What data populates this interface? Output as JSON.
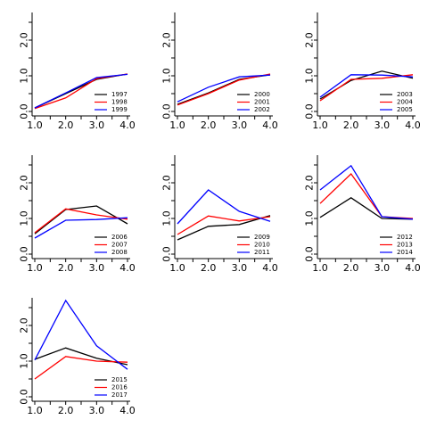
{
  "chart_data": [
    {
      "type": "line",
      "x": [
        1,
        2,
        3,
        4
      ],
      "xlim": [
        1,
        4
      ],
      "ylim": [
        0,
        2.5
      ],
      "xticks": [
        "1.0",
        "2.0",
        "3.0",
        "4.0"
      ],
      "yticks": [
        "0.0",
        "1.0",
        "2.0"
      ],
      "series": [
        {
          "name": "1997",
          "color": "#000000",
          "values": [
            0.1,
            0.5,
            0.9,
            1.05
          ]
        },
        {
          "name": "1998",
          "color": "#ff0000",
          "values": [
            0.08,
            0.38,
            0.92,
            1.05
          ]
        },
        {
          "name": "1999",
          "color": "#0000ff",
          "values": [
            0.1,
            0.52,
            0.95,
            1.04
          ]
        }
      ]
    },
    {
      "type": "line",
      "x": [
        1,
        2,
        3,
        4
      ],
      "xlim": [
        1,
        4
      ],
      "ylim": [
        0,
        2.5
      ],
      "xticks": [
        "1.0",
        "2.0",
        "3.0",
        "4.0"
      ],
      "yticks": [
        "0.0",
        "1.0",
        "2.0"
      ],
      "series": [
        {
          "name": "2000",
          "color": "#000000",
          "values": [
            0.2,
            0.52,
            0.9,
            1.03
          ]
        },
        {
          "name": "2001",
          "color": "#ff0000",
          "values": [
            0.18,
            0.5,
            0.88,
            1.05
          ]
        },
        {
          "name": "2002",
          "color": "#0000ff",
          "values": [
            0.27,
            0.68,
            0.97,
            1.02
          ]
        }
      ]
    },
    {
      "type": "line",
      "x": [
        1,
        2,
        3,
        4
      ],
      "xlim": [
        1,
        4
      ],
      "ylim": [
        0,
        2.5
      ],
      "xticks": [
        "1.0",
        "2.0",
        "3.0",
        "4.0"
      ],
      "yticks": [
        "0.0",
        "1.0",
        "2.0"
      ],
      "series": [
        {
          "name": "2003",
          "color": "#000000",
          "values": [
            0.35,
            0.87,
            1.13,
            0.93
          ]
        },
        {
          "name": "2004",
          "color": "#ff0000",
          "values": [
            0.3,
            0.9,
            0.93,
            1.03
          ]
        },
        {
          "name": "2005",
          "color": "#0000ff",
          "values": [
            0.4,
            1.03,
            1.02,
            0.97
          ]
        }
      ]
    },
    {
      "type": "line",
      "x": [
        1,
        2,
        3,
        4
      ],
      "xlim": [
        1,
        4
      ],
      "ylim": [
        0,
        2.5
      ],
      "xticks": [
        "1.0",
        "2.0",
        "3.0",
        "4.0"
      ],
      "yticks": [
        "0.0",
        "1.0",
        "2.0"
      ],
      "series": [
        {
          "name": "2006",
          "color": "#000000",
          "values": [
            0.57,
            1.25,
            1.35,
            0.85
          ]
        },
        {
          "name": "2007",
          "color": "#ff0000",
          "values": [
            0.6,
            1.27,
            1.1,
            0.98
          ]
        },
        {
          "name": "2008",
          "color": "#0000ff",
          "values": [
            0.45,
            0.95,
            0.97,
            1.02
          ]
        }
      ]
    },
    {
      "type": "line",
      "x": [
        1,
        2,
        3,
        4
      ],
      "xlim": [
        1,
        4
      ],
      "ylim": [
        0,
        2.5
      ],
      "xticks": [
        "1.0",
        "2.0",
        "3.0",
        "4.0"
      ],
      "yticks": [
        "0.0",
        "1.0",
        "2.0"
      ],
      "series": [
        {
          "name": "2009",
          "color": "#000000",
          "values": [
            0.4,
            0.78,
            0.83,
            1.08
          ]
        },
        {
          "name": "2010",
          "color": "#ff0000",
          "values": [
            0.55,
            1.07,
            0.93,
            1.05
          ]
        },
        {
          "name": "2011",
          "color": "#0000ff",
          "values": [
            0.85,
            1.8,
            1.2,
            0.92
          ]
        }
      ]
    },
    {
      "type": "line",
      "x": [
        1,
        2,
        3,
        4
      ],
      "xlim": [
        1,
        4
      ],
      "ylim": [
        0,
        2.5
      ],
      "xticks": [
        "1.0",
        "2.0",
        "3.0",
        "4.0"
      ],
      "yticks": [
        "0.0",
        "1.0",
        "2.0"
      ],
      "series": [
        {
          "name": "2012",
          "color": "#000000",
          "values": [
            1.03,
            1.58,
            1.0,
            0.98
          ]
        },
        {
          "name": "2013",
          "color": "#ff0000",
          "values": [
            1.42,
            2.25,
            1.05,
            1.0
          ]
        },
        {
          "name": "2014",
          "color": "#0000ff",
          "values": [
            1.8,
            2.48,
            1.05,
            0.98
          ]
        }
      ]
    },
    {
      "type": "line",
      "x": [
        1,
        2,
        3,
        4
      ],
      "xlim": [
        1,
        4
      ],
      "ylim": [
        0,
        2.5
      ],
      "xticks": [
        "1.0",
        "2.0",
        "3.0",
        "4.0"
      ],
      "yticks": [
        "0.0",
        "1.0",
        "2.0"
      ],
      "series": [
        {
          "name": "2015",
          "color": "#000000",
          "values": [
            1.05,
            1.37,
            1.08,
            0.9
          ]
        },
        {
          "name": "2016",
          "color": "#ff0000",
          "values": [
            0.5,
            1.13,
            1.0,
            0.97
          ]
        },
        {
          "name": "2017",
          "color": "#0000ff",
          "values": [
            1.03,
            2.7,
            1.43,
            0.77
          ]
        }
      ]
    }
  ]
}
